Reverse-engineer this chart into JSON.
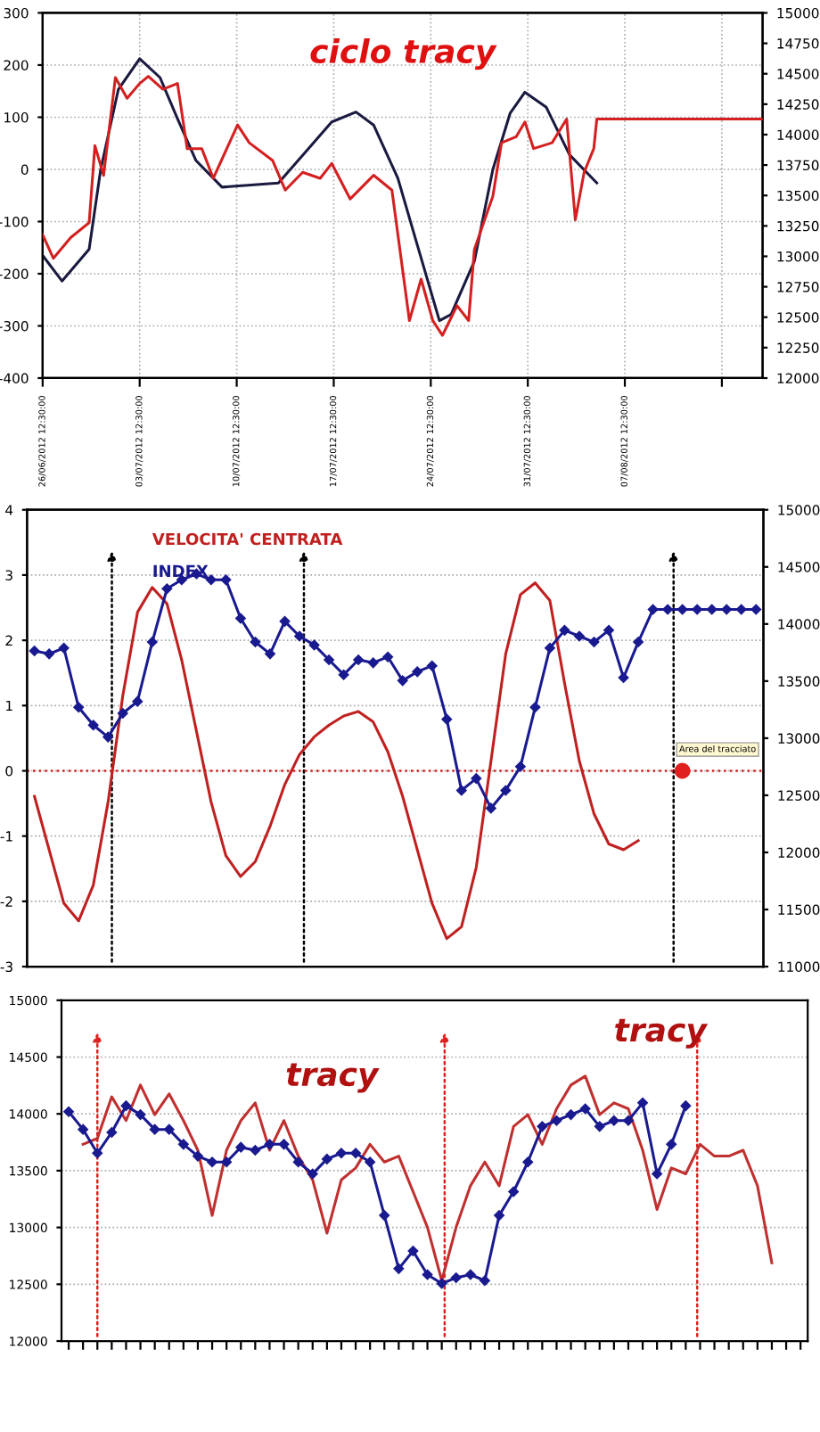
{
  "chart_data": [
    {
      "type": "line",
      "title": "ciclo tracy",
      "xlim": [
        "2012-06-26T12:30",
        "2012-08-17T11:00"
      ],
      "xticks": [
        {
          "value": "2012-06-26T12:30",
          "label": "26/06/2012 12:30:00"
        },
        {
          "value": "2012-07-03T12:30",
          "label": "03/07/2012 12:30:00"
        },
        {
          "value": "2012-07-10T12:30",
          "label": "10/07/2012 12:30:00"
        },
        {
          "value": "2012-07-17T12:30",
          "label": "17/07/2012 12:30:00"
        },
        {
          "value": "2012-07-24T12:30",
          "label": "24/07/2012 12:30:00"
        },
        {
          "value": "2012-07-31T12:30",
          "label": "31/07/2012 12:30:00"
        },
        {
          "value": "2012-08-07T12:30",
          "label": "07/08/2012 12:30:00"
        },
        {
          "value": "2012-08-14T12:30",
          "label": null
        }
      ],
      "ylim": [
        -400,
        300
      ],
      "yticks": [
        -400,
        -300,
        -200,
        -100,
        0,
        100,
        200,
        300
      ],
      "y2lim": [
        12000,
        15000
      ],
      "y2ticks": [
        12000,
        12250,
        12500,
        12750,
        13000,
        13250,
        13500,
        13750,
        14000,
        14250,
        14500,
        14750,
        15000
      ],
      "grid": true,
      "line_style": "solid",
      "series": [
        {
          "axis": "y",
          "color": "#1a1a40",
          "x": [
            "2012-06-26T12:30",
            "2012-06-27T22:00",
            "2012-06-29T21:00",
            "2012-06-30T17:00",
            "2012-07-01T23:30",
            "2012-07-03T12:30",
            "2012-07-04T23:45",
            "2012-07-06T06:00",
            "2012-07-07T14:00",
            "2012-07-09T11:00",
            "2012-07-13T12:45",
            "2012-07-15T17:00",
            "2012-07-17T09:00",
            "2012-07-19T03:00",
            "2012-07-20T09:30",
            "2012-07-22T03:30",
            "2012-07-23T09:30",
            "2012-07-25T03:30",
            "2012-07-25T23:45",
            "2012-07-27T16:00",
            "2012-07-29T00:00",
            "2012-07-30T06:00",
            "2012-07-31T07:30",
            "2012-08-01T20:30",
            "2012-08-03T12:45",
            "2012-08-05T12:00"
          ],
          "values": [
            -165,
            -214,
            -153,
            0,
            153,
            212,
            176,
            97,
            17,
            -34,
            -26,
            40,
            91,
            110,
            85,
            -17,
            -131,
            -290,
            -278,
            -176,
            0,
            108,
            148,
            119,
            28,
            -26
          ]
        },
        {
          "axis": "y2",
          "color": "#d42020",
          "x": [
            "2012-06-26T12:30",
            "2012-06-27T07:00",
            "2012-06-28T13:00",
            "2012-06-29T21:00",
            "2012-06-30T07:00",
            "2012-06-30T22:00",
            "2012-07-01T18:30",
            "2012-07-02T14:45",
            "2012-07-03T12:30",
            "2012-07-04T03:30",
            "2012-07-05T04:45",
            "2012-07-06T06:00",
            "2012-07-06T22:45",
            "2012-07-08T00:00",
            "2012-07-08T20:00",
            "2012-07-10T14:00",
            "2012-07-11T10:15",
            "2012-07-13T02:45",
            "2012-07-14T00:30",
            "2012-07-15T06:45",
            "2012-07-16T13:00",
            "2012-07-17T09:00",
            "2012-07-18T17:00",
            "2012-07-20T09:30",
            "2012-07-21T17:15",
            "2012-07-22T23:30",
            "2012-07-23T19:45",
            "2012-07-24T16:00",
            "2012-07-25T08:45",
            "2012-07-26T10:00",
            "2012-07-27T06:00",
            "2012-07-27T16:00",
            "2012-07-29T00:00",
            "2012-07-29T15:00",
            "2012-07-30T16:15",
            "2012-07-31T07:30",
            "2012-07-31T22:30",
            "2012-08-02T06:30",
            "2012-08-03T07:45",
            "2012-08-03T22:45",
            "2012-08-04T14:00",
            "2012-08-05T06:45",
            "2012-08-05T12:00",
            "2012-08-17T11:00"
          ],
          "values": [
            13179,
            12984,
            13154,
            13276,
            13909,
            13665,
            14469,
            14299,
            14420,
            14479,
            14372,
            14420,
            13885,
            13885,
            13641,
            14080,
            13933,
            13787,
            13544,
            13690,
            13641,
            13763,
            13471,
            13666,
            13544,
            12472,
            12813,
            12472,
            12351,
            12594,
            12472,
            13057,
            13495,
            13933,
            13982,
            14104,
            13885,
            13933,
            14128,
            13300,
            13690,
            13885,
            14128,
            14128
          ]
        }
      ]
    },
    {
      "type": "line",
      "tick_labels": "y",
      "grid": "y",
      "annotations": [
        "Area del tracciato"
      ],
      "categories": [
        null,
        null,
        null,
        null,
        null,
        null,
        null,
        null,
        null,
        null,
        null,
        null,
        null,
        null,
        null,
        null,
        null,
        null,
        null,
        null,
        null,
        null,
        null,
        null,
        null,
        null,
        null,
        null,
        null,
        null,
        null,
        null,
        null,
        null,
        null,
        null,
        null,
        null,
        null,
        null,
        null,
        null,
        null,
        null,
        null,
        null,
        null,
        null,
        null,
        null
      ],
      "ylim": [
        -3,
        4
      ],
      "yticks": [
        -3,
        -2,
        -1,
        0,
        1,
        2,
        3,
        4
      ],
      "y2lim": [
        11000,
        15000
      ],
      "y2ticks": [
        11000,
        11500,
        12000,
        12500,
        13000,
        13500,
        14000,
        14500,
        15000
      ],
      "ref_lines": [
        {
          "axis": "y",
          "value": 0,
          "color": "#d42020",
          "line_style": "dotted"
        }
      ],
      "series": [
        {
          "name": "VELOCITA' CENTRATA",
          "axis": "y",
          "color": "#c02020",
          "marker": "none",
          "values": [
            -0.39,
            -1.21,
            -2.03,
            -2.3,
            -1.75,
            -0.48,
            1.15,
            2.43,
            2.81,
            2.56,
            1.7,
            0.61,
            -0.48,
            -1.3,
            -1.62,
            -1.39,
            -0.85,
            -0.21,
            0.25,
            0.52,
            0.7,
            0.84,
            0.91,
            0.75,
            0.29,
            -0.39,
            -1.21,
            -2.03,
            -2.57,
            -2.39,
            -1.48,
            0.15,
            1.79,
            2.7,
            2.88,
            2.61,
            1.34,
            0.15,
            -0.66,
            -1.12,
            -1.21,
            -1.07,
            null,
            null,
            null,
            null,
            null,
            null,
            null,
            null
          ]
        },
        {
          "name": "INDEX",
          "axis": "y2",
          "color": "#1a1a90",
          "marker": "diamond",
          "values": [
            13764,
            13738,
            13790,
            13270,
            13114,
            13010,
            13218,
            13322,
            13842,
            14309,
            14387,
            14439,
            14387,
            14387,
            14049,
            13842,
            13738,
            14023,
            13893,
            13816,
            13686,
            13556,
            13686,
            13660,
            13712,
            13504,
            13582,
            13634,
            13166,
            12543,
            12647,
            12387,
            12543,
            12751,
            13270,
            13790,
            13945,
            13893,
            13842,
            13945,
            13530,
            13842,
            14127,
            14127,
            14127,
            14127,
            14127,
            14127,
            14127,
            14127
          ]
        },
        {
          "type": "scatter",
          "axis": "y",
          "color": "#e02020",
          "marker": "circle",
          "values": [
            null,
            null,
            null,
            null,
            null,
            null,
            null,
            null,
            null,
            null,
            null,
            null,
            null,
            null,
            null,
            null,
            null,
            null,
            null,
            null,
            null,
            null,
            null,
            null,
            null,
            null,
            null,
            null,
            null,
            null,
            null,
            null,
            null,
            null,
            null,
            null,
            null,
            null,
            null,
            null,
            null,
            null,
            null,
            null,
            0,
            null,
            null,
            null,
            null,
            null
          ]
        }
      ]
    },
    {
      "type": "line",
      "grid": "y",
      "annotations": [
        "tracy",
        "tracy"
      ],
      "categories": [
        null,
        null,
        null,
        null,
        null,
        null,
        null,
        null,
        null,
        null,
        null,
        null,
        null,
        null,
        null,
        null,
        null,
        null,
        null,
        null,
        null,
        null,
        null,
        null,
        null,
        null,
        null,
        null,
        null,
        null,
        null,
        null,
        null,
        null,
        null,
        null,
        null,
        null,
        null,
        null,
        null,
        null,
        null,
        null,
        null,
        null,
        null,
        null,
        null,
        null,
        null,
        null
      ],
      "ylim": [
        12000,
        15000
      ],
      "yticks": [
        12000,
        12500,
        13000,
        13500,
        14000,
        14500,
        15000
      ],
      "series": [
        {
          "color": "#c03030",
          "marker": "none",
          "values": [
            null,
            13732,
            13784,
            14150,
            13941,
            14254,
            13993,
            14176,
            13941,
            13680,
            13106,
            13680,
            13941,
            14097,
            13680,
            13941,
            13628,
            13419,
            12950,
            13419,
            13524,
            13732,
            13576,
            13628,
            13315,
            13002,
            12532,
            13002,
            13367,
            13576,
            13367,
            13889,
            13993,
            13732,
            14045,
            14254,
            14332,
            13993,
            14097,
            14045,
            13680,
            13158,
            13524,
            13472,
            13732,
            13628,
            13628,
            13680,
            13367,
            12689,
            null,
            null
          ]
        },
        {
          "color": "#1a1a90",
          "marker": "diamond",
          "values": [
            14019,
            13863,
            13654,
            13837,
            14071,
            13993,
            13863,
            13863,
            13732,
            13628,
            13576,
            13576,
            13706,
            13680,
            13732,
            13732,
            13576,
            13472,
            13602,
            13654,
            13654,
            13576,
            13106,
            12637,
            12793,
            12585,
            12506,
            12558,
            12585,
            12532,
            13106,
            13315,
            13576,
            13889,
            13941,
            13993,
            14045,
            13889,
            13941,
            13941,
            14097,
            13472,
            13732,
            14071,
            null,
            null,
            null,
            null,
            null,
            null,
            null,
            null
          ]
        }
      ]
    }
  ]
}
